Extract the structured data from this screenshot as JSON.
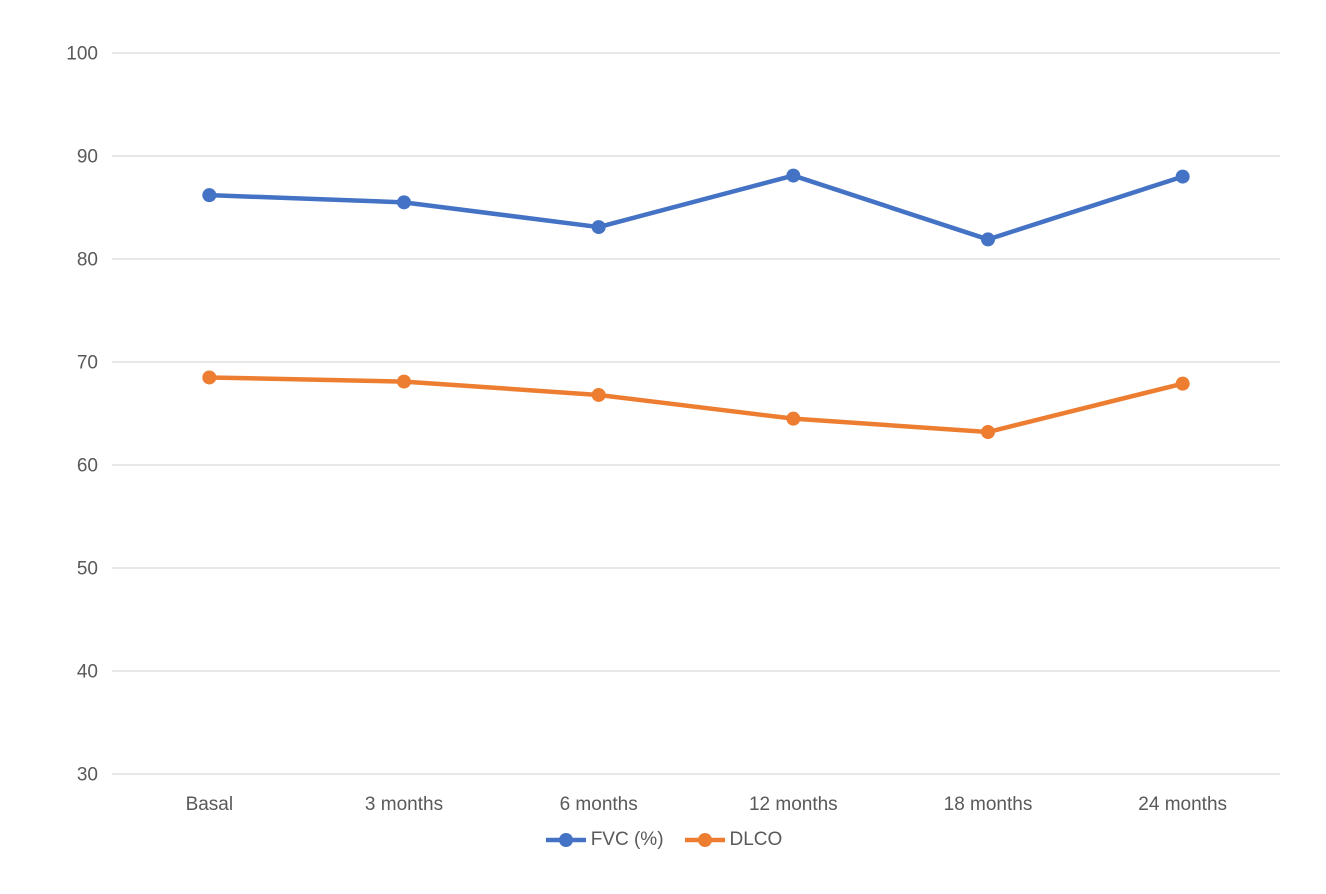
{
  "chart_data": {
    "type": "line",
    "categories": [
      "Basal",
      "3 months",
      "6 months",
      "12 months",
      "18 months",
      "24 months"
    ],
    "series": [
      {
        "name": "FVC (%)",
        "color": "#4472C4",
        "values": [
          86.2,
          85.5,
          83.1,
          88.1,
          81.9,
          88.0
        ]
      },
      {
        "name": "DLCO",
        "color": "#ED7D31",
        "values": [
          68.5,
          68.1,
          66.8,
          64.5,
          63.2,
          67.9
        ]
      }
    ],
    "ylim": [
      30,
      100
    ],
    "yticks": [
      30,
      40,
      50,
      60,
      70,
      80,
      90,
      100
    ],
    "grid": "horizontal",
    "legend_position": "bottom",
    "marker": "circle"
  },
  "colors": {
    "background": "#FFFFFF",
    "gridline": "#D9D9D9",
    "axis_text": "#595959",
    "series_fvc": "#4472C4",
    "series_dlco": "#ED7D31"
  }
}
